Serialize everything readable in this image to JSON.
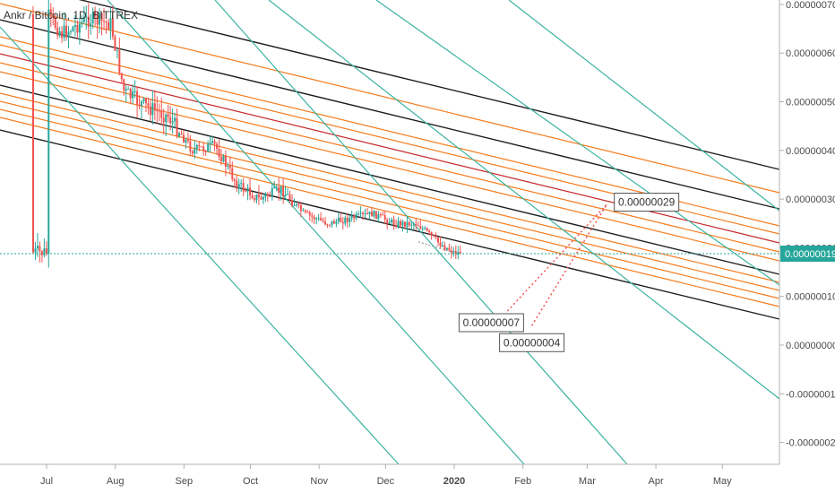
{
  "chart_data": {
    "type": "candlestick",
    "title": "Ankr / Bitcoin, 1D, BITTREX",
    "x_ticks": [
      "Jul",
      "Aug",
      "Sep",
      "Oct",
      "Nov",
      "Dec",
      "2020",
      "Feb",
      "Mar",
      "Apr",
      "May"
    ],
    "y_ticks": [
      "0.00000070",
      "0.00000060",
      "0.00000050",
      "0.00000040",
      "0.00000030",
      "0.00000020",
      "0.00000010",
      "0.00000000",
      "-0.00000010",
      "-0.00000020"
    ],
    "ylim": [
      -2.4e-07,
      7.1e-07
    ],
    "current_price": "0.00000019",
    "price_points": [
      [
        "2019-07-01",
        6.8e-07
      ],
      [
        "2019-07-08",
        6.4e-07
      ],
      [
        "2019-07-20",
        6.7e-07
      ],
      [
        "2019-07-30",
        6.6e-07
      ],
      [
        "2019-08-05",
        5.2e-07
      ],
      [
        "2019-08-15",
        4.9e-07
      ],
      [
        "2019-08-25",
        4.7e-07
      ],
      [
        "2019-09-05",
        4e-07
      ],
      [
        "2019-09-15",
        4.1e-07
      ],
      [
        "2019-09-25",
        3.3e-07
      ],
      [
        "2019-10-05",
        3e-07
      ],
      [
        "2019-10-15",
        3.2e-07
      ],
      [
        "2019-10-25",
        2.7e-07
      ],
      [
        "2019-11-05",
        2.5e-07
      ],
      [
        "2019-11-15",
        2.6e-07
      ],
      [
        "2019-11-25",
        2.7e-07
      ],
      [
        "2019-12-05",
        2.5e-07
      ],
      [
        "2019-12-15",
        2.5e-07
      ],
      [
        "2019-12-25",
        2.1e-07
      ],
      [
        "2020-01-01",
        1.9e-07
      ]
    ],
    "annotations": [
      {
        "label": "0.00000029",
        "date": "2020-03-10",
        "value": 2.9e-07
      },
      {
        "label": "0.00000007",
        "date": "2020-01-25",
        "value": 7e-08
      },
      {
        "label": "0.00000004",
        "date": "2020-02-05",
        "value": 4e-08
      }
    ],
    "colors": {
      "up": "#26a69a",
      "down": "#ef5350",
      "orange": "#f57c1f",
      "dark": "#1e1e1e",
      "red": "#c62828",
      "teal": "#3ab3a0",
      "price_label_bg": "#26a69a",
      "price_label_text": "#ffffff"
    }
  }
}
